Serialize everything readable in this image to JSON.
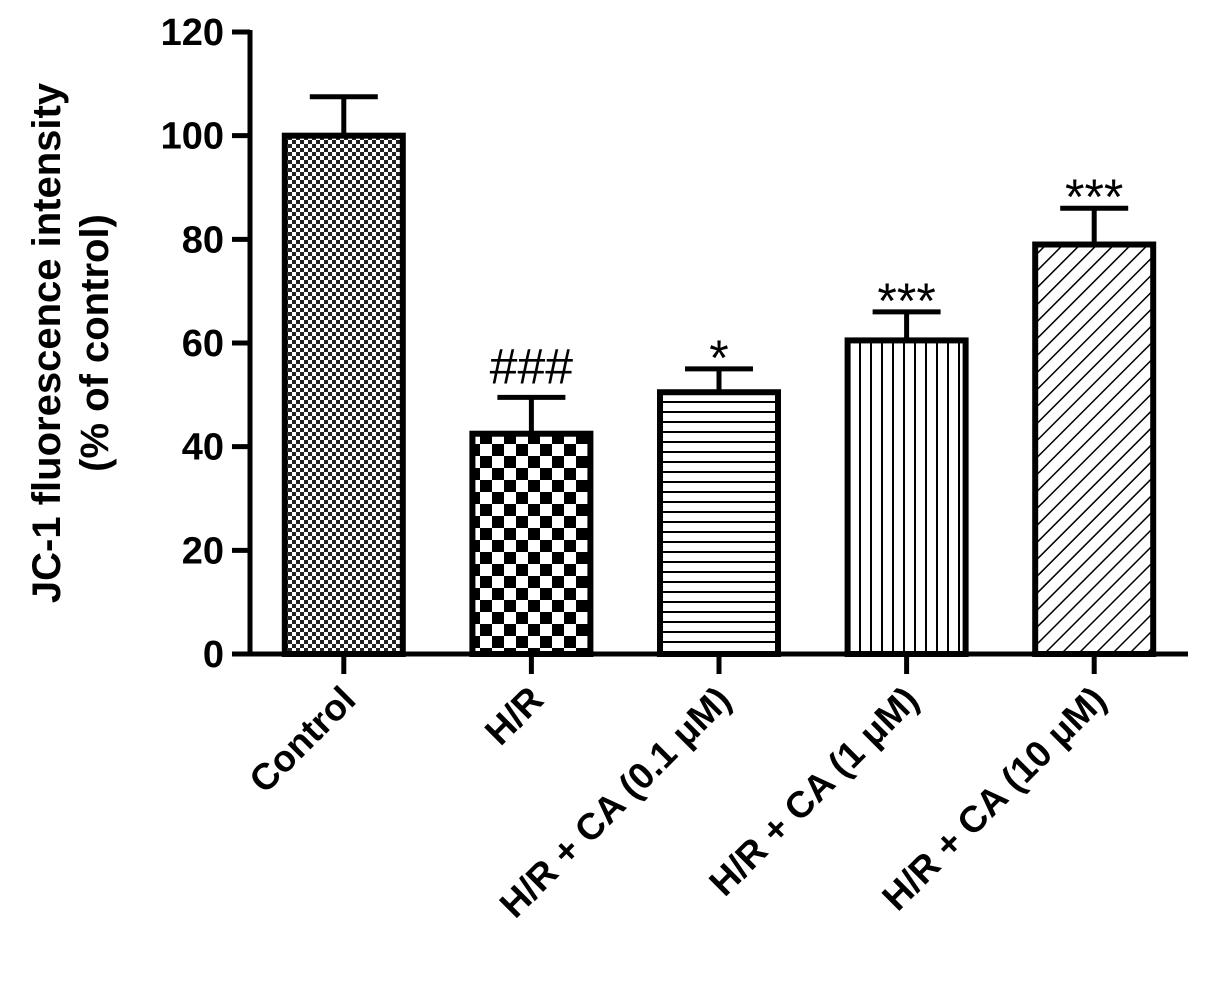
{
  "chart_data": {
    "type": "bar",
    "title": "",
    "xlabel": "",
    "ylabel_lines": [
      "JC-1 fluorescence intensity",
      "(% of control)"
    ],
    "ylim": [
      0,
      120
    ],
    "yticks": [
      0,
      20,
      40,
      60,
      80,
      100,
      120
    ],
    "grid": false,
    "categories": [
      "Control",
      "H/R",
      "H/R + CA (0.1 μM)",
      "H/R + CA (1 μM)",
      "H/R + CA (10 μM)"
    ],
    "values": [
      100,
      42.5,
      50.5,
      60.5,
      79
    ],
    "errors": [
      7.5,
      7,
      4.5,
      5.5,
      7
    ],
    "annotations": [
      "",
      "###",
      "*",
      "***",
      "***"
    ],
    "fill_patterns": [
      "fine-check",
      "checkerboard",
      "horizontal-lines",
      "vertical-lines",
      "diagonal-lines"
    ]
  }
}
